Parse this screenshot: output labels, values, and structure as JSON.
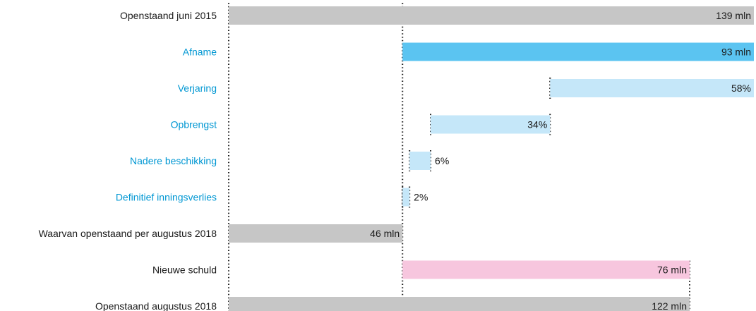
{
  "chart_data": {
    "type": "bar",
    "subtype": "waterfall",
    "categories": [
      "Openstaand juni 2015",
      "Afname",
      "Verjaring",
      "Opbrengst",
      "Nadere beschikking",
      "Definitief inningsverlies",
      "Waarvan openstaand per augustus 2018",
      "Nieuwe schuld",
      "Openstaand augustus 2018"
    ],
    "units": "mln",
    "bars": [
      {
        "category": "Openstaand juni 2015",
        "start": 0,
        "end": 139,
        "label": "139 mln",
        "color": "#c6c6c6",
        "label_color": "#1a1a1a"
      },
      {
        "category": "Afname",
        "start": 46,
        "end": 139,
        "label": "93 mln",
        "color": "#5bc4f1",
        "label_color": "#0097d3"
      },
      {
        "category": "Verjaring",
        "start": 85.06,
        "end": 139,
        "label": "58%",
        "color": "#c5e7f9",
        "label_color": "#0097d3"
      },
      {
        "category": "Opbrengst",
        "start": 53.44,
        "end": 85.06,
        "label": "34%",
        "color": "#c5e7f9",
        "label_color": "#0097d3"
      },
      {
        "category": "Nadere beschikking",
        "start": 47.86,
        "end": 53.44,
        "label": "6%",
        "color": "#c5e7f9",
        "label_color": "#0097d3"
      },
      {
        "category": "Definitief inningsverlies",
        "start": 46,
        "end": 47.86,
        "label": "2%",
        "color": "#c5e7f9",
        "label_color": "#0097d3"
      },
      {
        "category": "Waarvan openstaand per augustus 2018",
        "start": 0,
        "end": 46,
        "label": "46 mln",
        "color": "#c6c6c6",
        "label_color": "#1a1a1a"
      },
      {
        "category": "Nieuwe schuld",
        "start": 46,
        "end": 122,
        "label": "76 mln",
        "color": "#f7c6de",
        "label_color": "#1a1a1a"
      },
      {
        "category": "Openstaand augustus 2018",
        "start": 0,
        "end": 122,
        "label": "122 mln",
        "color": "#c6c6c6",
        "label_color": "#1a1a1a"
      }
    ],
    "xlim": [
      0,
      139
    ],
    "grid": false,
    "legend": "none",
    "title": ""
  }
}
